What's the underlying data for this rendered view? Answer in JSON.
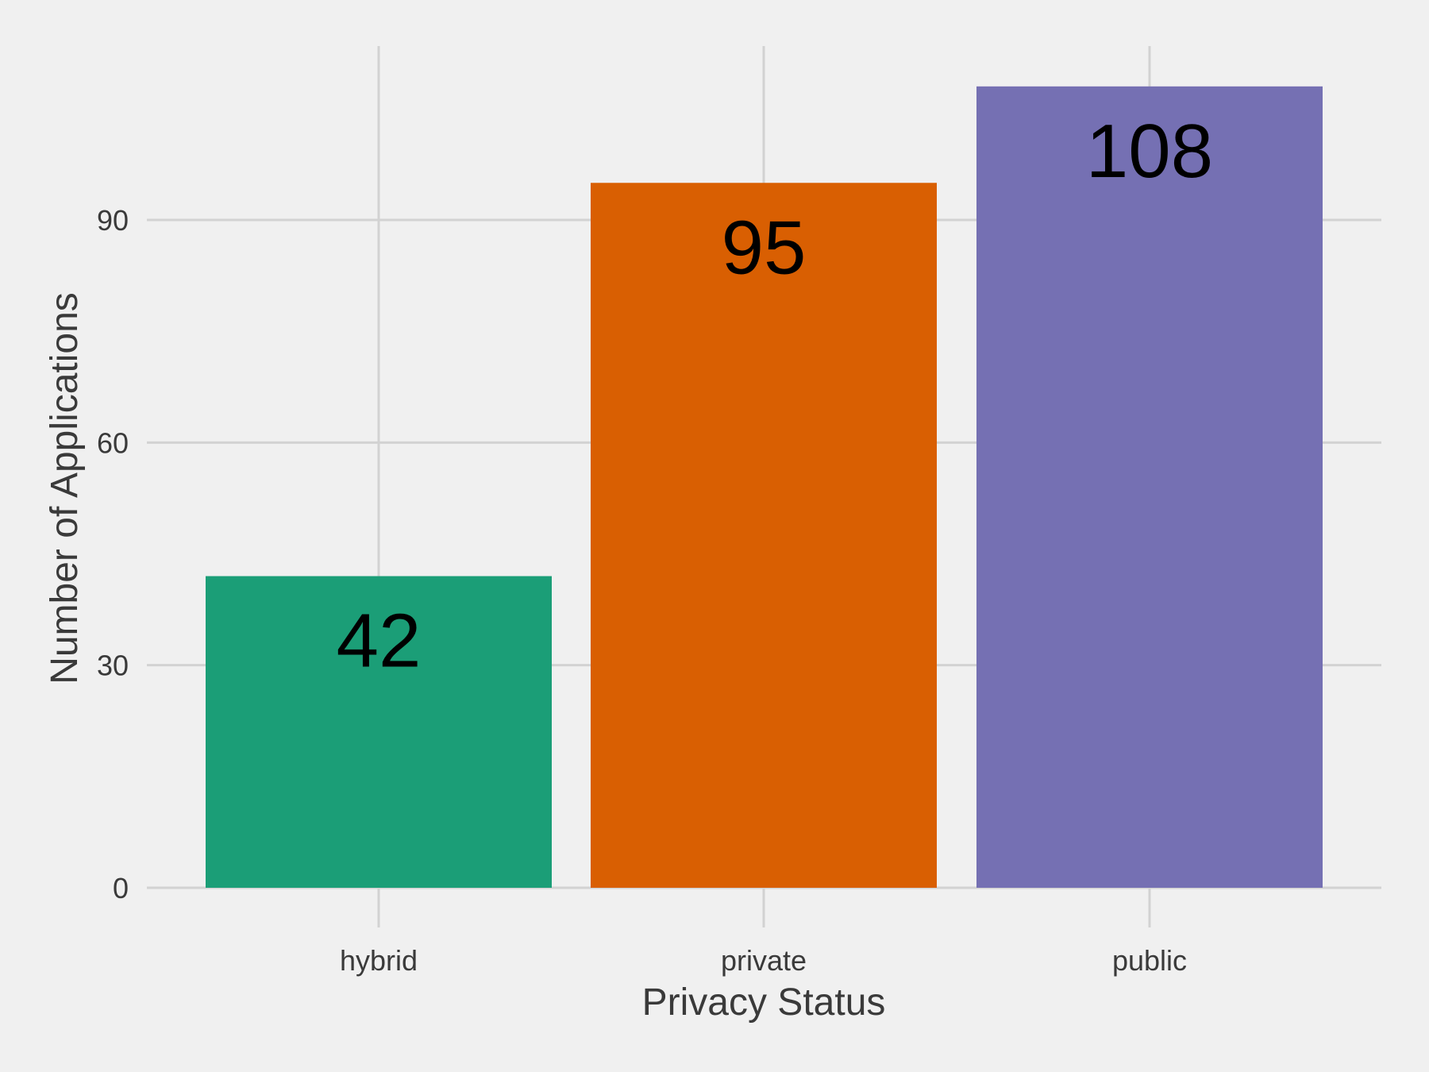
{
  "chart_data": {
    "type": "bar",
    "title": "",
    "xlabel": "Privacy Status",
    "ylabel": "Number of Applications",
    "categories": [
      "hybrid",
      "private",
      "public"
    ],
    "values": [
      42,
      95,
      108
    ],
    "value_labels": [
      "42",
      "95",
      "108"
    ],
    "colors": [
      "#1b9e77",
      "#d95f02",
      "#7570b3"
    ],
    "ylim": [
      0,
      115
    ],
    "yticks": [
      0,
      30,
      60,
      90
    ],
    "ytick_labels": [
      "0",
      "30",
      "60",
      "90"
    ],
    "grid": true,
    "legend": "none",
    "background": "#f0f0f0"
  }
}
